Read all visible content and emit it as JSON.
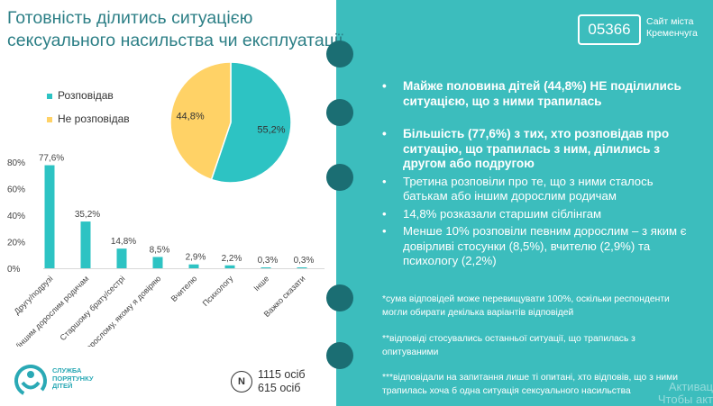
{
  "title_lines": [
    "Готовність ділитись ситуацією",
    "сексуального насильства чи експлуатації"
  ],
  "colors": {
    "teal": "#2dc3c3",
    "yellow": "#ffd266",
    "panel": "#3cbdbd",
    "dark_dot": "#1b6e73",
    "title": "#2c7f86"
  },
  "legend": [
    {
      "label": "Розповідав",
      "color": "#2dc3c3"
    },
    {
      "label": "Не розповідав",
      "color": "#ffd266"
    }
  ],
  "chart_data": [
    {
      "type": "pie",
      "slices": [
        {
          "label": "Розповідав",
          "value": 55.2,
          "text": "55,2%",
          "color": "#2dc3c3"
        },
        {
          "label": "Не розповідав",
          "value": 44.8,
          "text": "44,8%",
          "color": "#ffd266"
        }
      ]
    },
    {
      "type": "bar",
      "categories": [
        "Другу/подрузі",
        "Батькам/іншим дорослим родичам",
        "Старшому брату/сестрі",
        "Дорослому, якому я довіряю",
        "Вчителю",
        "Психологу",
        "Інше",
        "Важко сказати"
      ],
      "values": [
        77.6,
        35.2,
        14.8,
        8.5,
        2.9,
        2.2,
        0.3,
        0.3
      ],
      "value_labels": [
        "77,6%",
        "35,2%",
        "14,8%",
        "8,5%",
        "2,9%",
        "2,2%",
        "0,3%",
        "0,3%"
      ],
      "ylim": [
        0,
        80
      ],
      "yticks": [
        0,
        20,
        40,
        60,
        80
      ],
      "ytick_labels": [
        "0%",
        "20%",
        "40%",
        "60%",
        "80%"
      ],
      "color": "#2dc3c3",
      "grid": false
    }
  ],
  "bullets": [
    {
      "text": "Майже половина дітей (44,8%) НЕ поділились ситуацією, що з ними трапилась",
      "bold": true
    },
    {
      "text": "Більшість (77,6%) з тих, хто розповідав про ситуацію, що трапилась з ним, ділились з другом або подругою",
      "bold": true
    },
    {
      "text": "Третина розповіли про те, що з ними сталось батькам або іншим дорослим родичам",
      "bold": false
    },
    {
      "text": "14,8% розказали старшим сіблінгам",
      "bold": false
    },
    {
      "text": "Менше 10% розповіли певним дорослим – з яким є довірливі стосунки (8,5%), вчителю (2,9%) та психологу (2,2%)",
      "bold": false
    }
  ],
  "notes": [
    "*сума відповідей може перевищувати 100%, оскільки респонденти могли обирати декілька варіантів відповідей",
    "**відповіді стосувались останньої ситуації, що трапилась з опитуваними",
    "***відповідали на запитання лише ті опитані, хто відповів, що з ними трапилась хоча б одна ситуація сексуального насильства"
  ],
  "site_logo": {
    "number": "05366",
    "line1": "Сайт міста",
    "line2": "Кременчуга"
  },
  "org_logo": {
    "line1": "СЛУЖБА",
    "line2": "ПОРЯТУНКУ",
    "line3": "ДІТЕЙ"
  },
  "n_badge": {
    "letter": "N",
    "line1": "1115 осіб",
    "line2": "615 осіб"
  },
  "watermark": {
    "line1": "Активац",
    "line2": "Чтобы акт"
  }
}
